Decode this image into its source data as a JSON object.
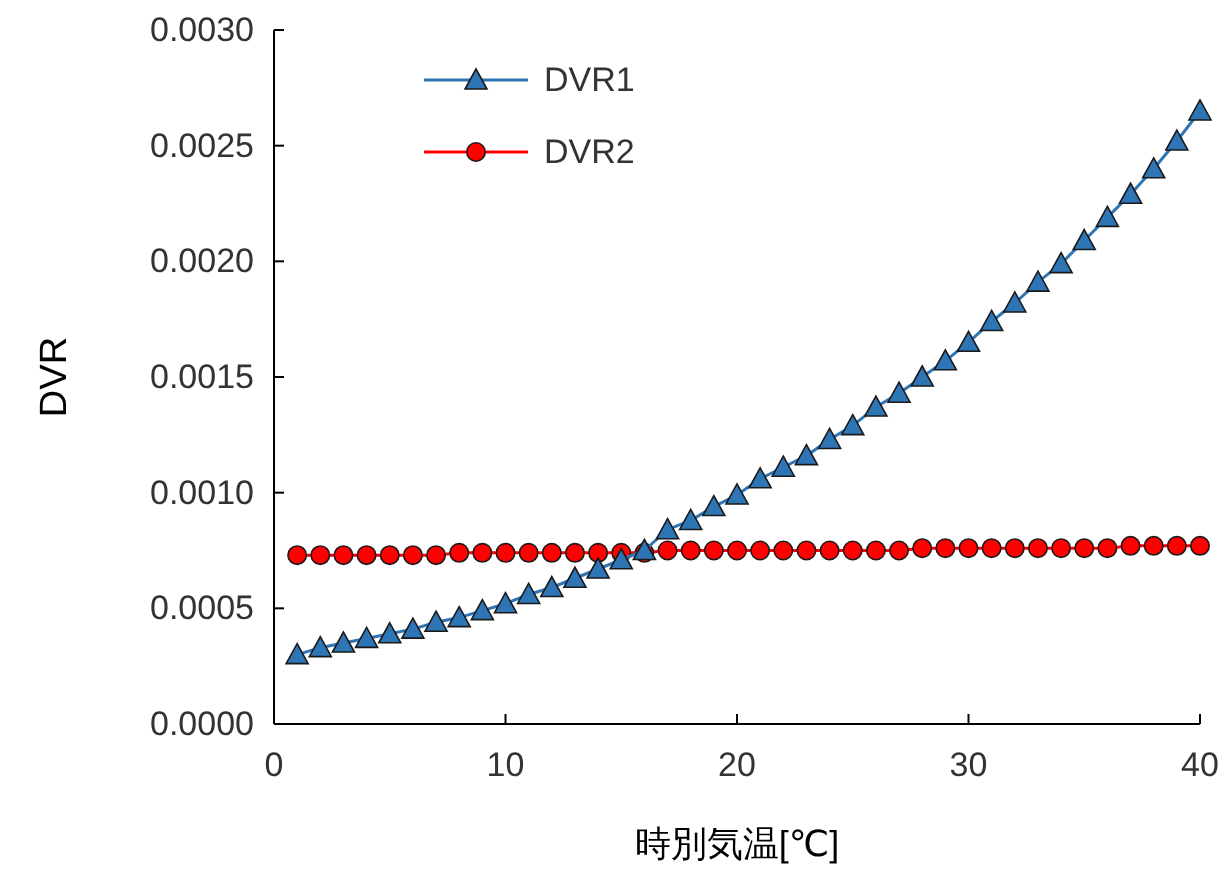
{
  "chart_data": {
    "type": "line",
    "xlabel": "時別気温[℃]",
    "ylabel": "DVR",
    "x": [
      1,
      2,
      3,
      4,
      5,
      6,
      7,
      8,
      9,
      10,
      11,
      12,
      13,
      14,
      15,
      16,
      17,
      18,
      19,
      20,
      21,
      22,
      23,
      24,
      25,
      26,
      27,
      28,
      29,
      30,
      31,
      32,
      33,
      34,
      35,
      36,
      37,
      38,
      39,
      40
    ],
    "series": [
      {
        "name": "DVR1",
        "color": "#2e75b6",
        "marker": "triangle",
        "values": [
          0.0003,
          0.00033,
          0.00035,
          0.00037,
          0.00039,
          0.00041,
          0.00044,
          0.00046,
          0.00049,
          0.00052,
          0.00056,
          0.00059,
          0.00063,
          0.00067,
          0.00071,
          0.00075,
          0.00084,
          0.00088,
          0.00094,
          0.00099,
          0.00106,
          0.00111,
          0.00116,
          0.00123,
          0.00129,
          0.00137,
          0.00143,
          0.0015,
          0.00157,
          0.00165,
          0.00174,
          0.00182,
          0.00191,
          0.00199,
          0.00209,
          0.00219,
          0.00229,
          0.0024,
          0.00252,
          0.00265
        ]
      },
      {
        "name": "DVR2",
        "color": "#ff0000",
        "marker": "circle",
        "values": [
          0.00073,
          0.00073,
          0.00073,
          0.00073,
          0.00073,
          0.00073,
          0.00073,
          0.00074,
          0.00074,
          0.00074,
          0.00074,
          0.00074,
          0.00074,
          0.00074,
          0.00074,
          0.00074,
          0.00075,
          0.00075,
          0.00075,
          0.00075,
          0.00075,
          0.00075,
          0.00075,
          0.00075,
          0.00075,
          0.00075,
          0.00075,
          0.00076,
          0.00076,
          0.00076,
          0.00076,
          0.00076,
          0.00076,
          0.00076,
          0.00076,
          0.00076,
          0.00077,
          0.00077,
          0.00077,
          0.00077
        ]
      }
    ],
    "xlim": [
      0,
      40
    ],
    "xticks": [
      0,
      10,
      20,
      30,
      40
    ],
    "ylim": [
      0,
      0.003
    ],
    "yticks": [
      {
        "value": 0,
        "label": "0.0000"
      },
      {
        "value": 0.0005,
        "label": "0.0005"
      },
      {
        "value": 0.001,
        "label": "0.0010"
      },
      {
        "value": 0.0015,
        "label": "0.0015"
      },
      {
        "value": 0.002,
        "label": "0.0020"
      },
      {
        "value": 0.0025,
        "label": "0.0025"
      },
      {
        "value": 0.003,
        "label": "0.0030"
      }
    ],
    "legend": "top left",
    "grid": false,
    "line_style": "solid"
  }
}
